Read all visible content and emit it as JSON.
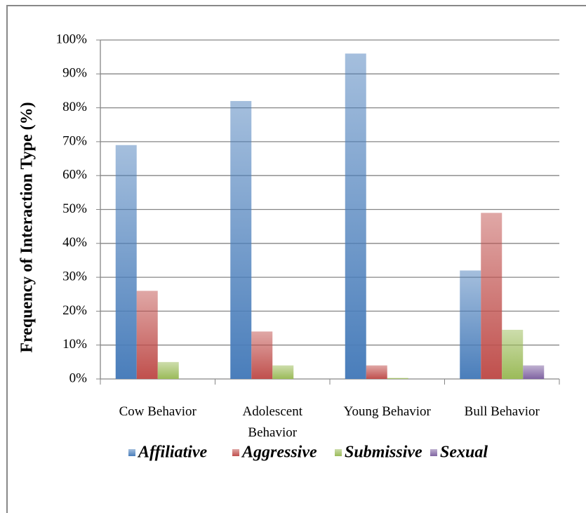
{
  "chart_data": {
    "type": "bar",
    "y_label": "Frequency of Interaction Type (%)",
    "categories": [
      "Cow Behavior",
      "Adolescent Behavior",
      "Young Behavior",
      "Bull Behavior"
    ],
    "series": [
      {
        "name": "Affiliative",
        "color": "#4a7ebb",
        "values": [
          69,
          82,
          96,
          32
        ]
      },
      {
        "name": "Aggressive",
        "color": "#c0504d",
        "values": [
          26,
          14,
          4,
          49
        ]
      },
      {
        "name": "Submissive",
        "color": "#9bbb59",
        "values": [
          5,
          4,
          0.3,
          14.5
        ]
      },
      {
        "name": "Sexual",
        "color": "#8064a2",
        "values": [
          0,
          0,
          0,
          4
        ]
      }
    ],
    "ylim": [
      0,
      100
    ],
    "yticks": [
      {
        "value": 0,
        "label": "0%"
      },
      {
        "value": 10,
        "label": "10%"
      },
      {
        "value": 20,
        "label": "20%"
      },
      {
        "value": 30,
        "label": "30%"
      },
      {
        "value": 40,
        "label": "40%"
      },
      {
        "value": 50,
        "label": "50%"
      },
      {
        "value": 60,
        "label": "60%"
      },
      {
        "value": 70,
        "label": "70%"
      },
      {
        "value": 80,
        "label": "80%"
      },
      {
        "value": 90,
        "label": "90%"
      },
      {
        "value": 100,
        "label": "100%"
      }
    ],
    "grid": true,
    "legend": "bottom"
  }
}
